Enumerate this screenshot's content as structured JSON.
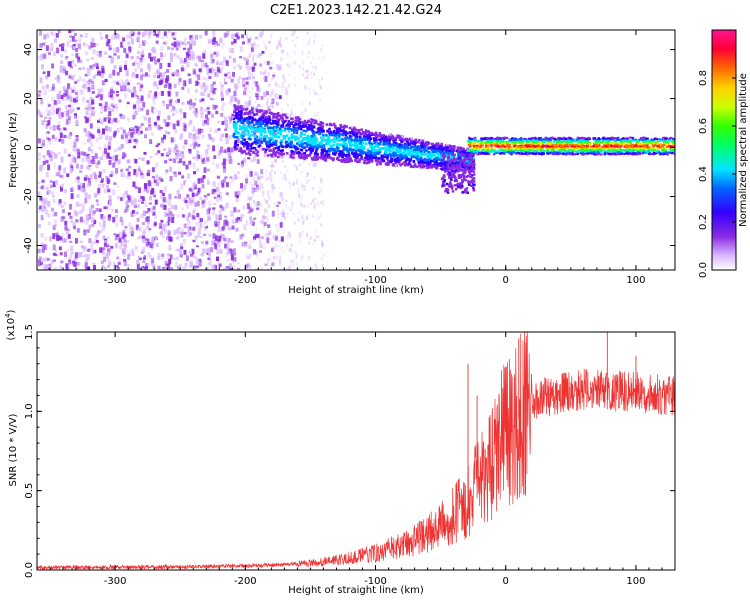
{
  "title": "C2E1.2023.142.21.42.G24",
  "chart_data": [
    {
      "type": "heatmap",
      "xlabel": "Height of straight line (km)",
      "ylabel": "Frequency (Hz)",
      "xlim": [
        -360,
        130
      ],
      "ylim": [
        -50,
        48
      ],
      "x_ticks": [
        -300,
        -200,
        -100,
        0,
        100
      ],
      "x_tick_labels": [
        "-300",
        "-200",
        "-100",
        "0",
        "100"
      ],
      "y_ticks": [
        -40,
        -20,
        0,
        20,
        40
      ],
      "y_tick_labels": [
        "-40",
        "-20",
        "0",
        "20",
        "40"
      ],
      "grid": false,
      "colorbar": {
        "label": "Normalized spectral amplitude",
        "range": [
          0,
          1
        ],
        "ticks": [
          0.0,
          0.2,
          0.4,
          0.6,
          0.8
        ],
        "tick_labels": [
          "0.0",
          "0.2",
          "0.4",
          "0.6",
          "0.8"
        ],
        "colormap": "rainbow (white-violet-blue-cyan-green-yellow-red-magenta)"
      },
      "description_regions": [
        {
          "x_range": [
            -360,
            -210
          ],
          "frequency_range": [
            -50,
            48
          ],
          "amplitude": 0.1
        },
        {
          "x_range": [
            -210,
            -30
          ],
          "frequency_range": [
            -15,
            15
          ],
          "amplitude": 0.35
        },
        {
          "x_range": [
            -30,
            130
          ],
          "frequency_range": [
            -2,
            4
          ],
          "amplitude": 0.9
        }
      ]
    },
    {
      "type": "line",
      "xlabel": "Height of straight line (km)",
      "ylabel": "SNR (10 * V/V)",
      "y_multiplier_label": "(x10",
      "y_multiplier_exp": "4",
      "y_multiplier_close": ")",
      "xlim": [
        -360,
        130
      ],
      "ylim": [
        0,
        15000
      ],
      "x_ticks": [
        -300,
        -200,
        -100,
        0,
        100
      ],
      "x_tick_labels": [
        "-300",
        "-200",
        "-100",
        "0",
        "100"
      ],
      "y_ticks": [
        0,
        5000,
        10000,
        15000
      ],
      "y_tick_labels": [
        "0.0",
        "0.5",
        "1.0",
        "1.5"
      ],
      "grid": false,
      "line_color": "#ee3333",
      "envelope": {
        "x": [
          -360,
          -250,
          -180,
          -140,
          -110,
          -80,
          -60,
          -45,
          -35,
          -28,
          -20,
          -12,
          -5,
          0,
          5,
          10,
          15,
          25,
          35,
          45,
          60,
          80,
          100,
          130
        ],
        "y": [
          150,
          200,
          300,
          500,
          900,
          1500,
          2300,
          3000,
          3800,
          4500,
          5500,
          6500,
          8000,
          8500,
          9000,
          9500,
          10200,
          10800,
          11000,
          11200,
          11400,
          11300,
          11200,
          11000
        ]
      },
      "spikes": [
        {
          "x": -29,
          "y": 13000
        },
        {
          "x": -22,
          "y": 11000
        },
        {
          "x": 10,
          "y": 14600
        },
        {
          "x": 78,
          "y": 15200
        },
        {
          "x": 100,
          "y": 13500
        }
      ]
    }
  ]
}
